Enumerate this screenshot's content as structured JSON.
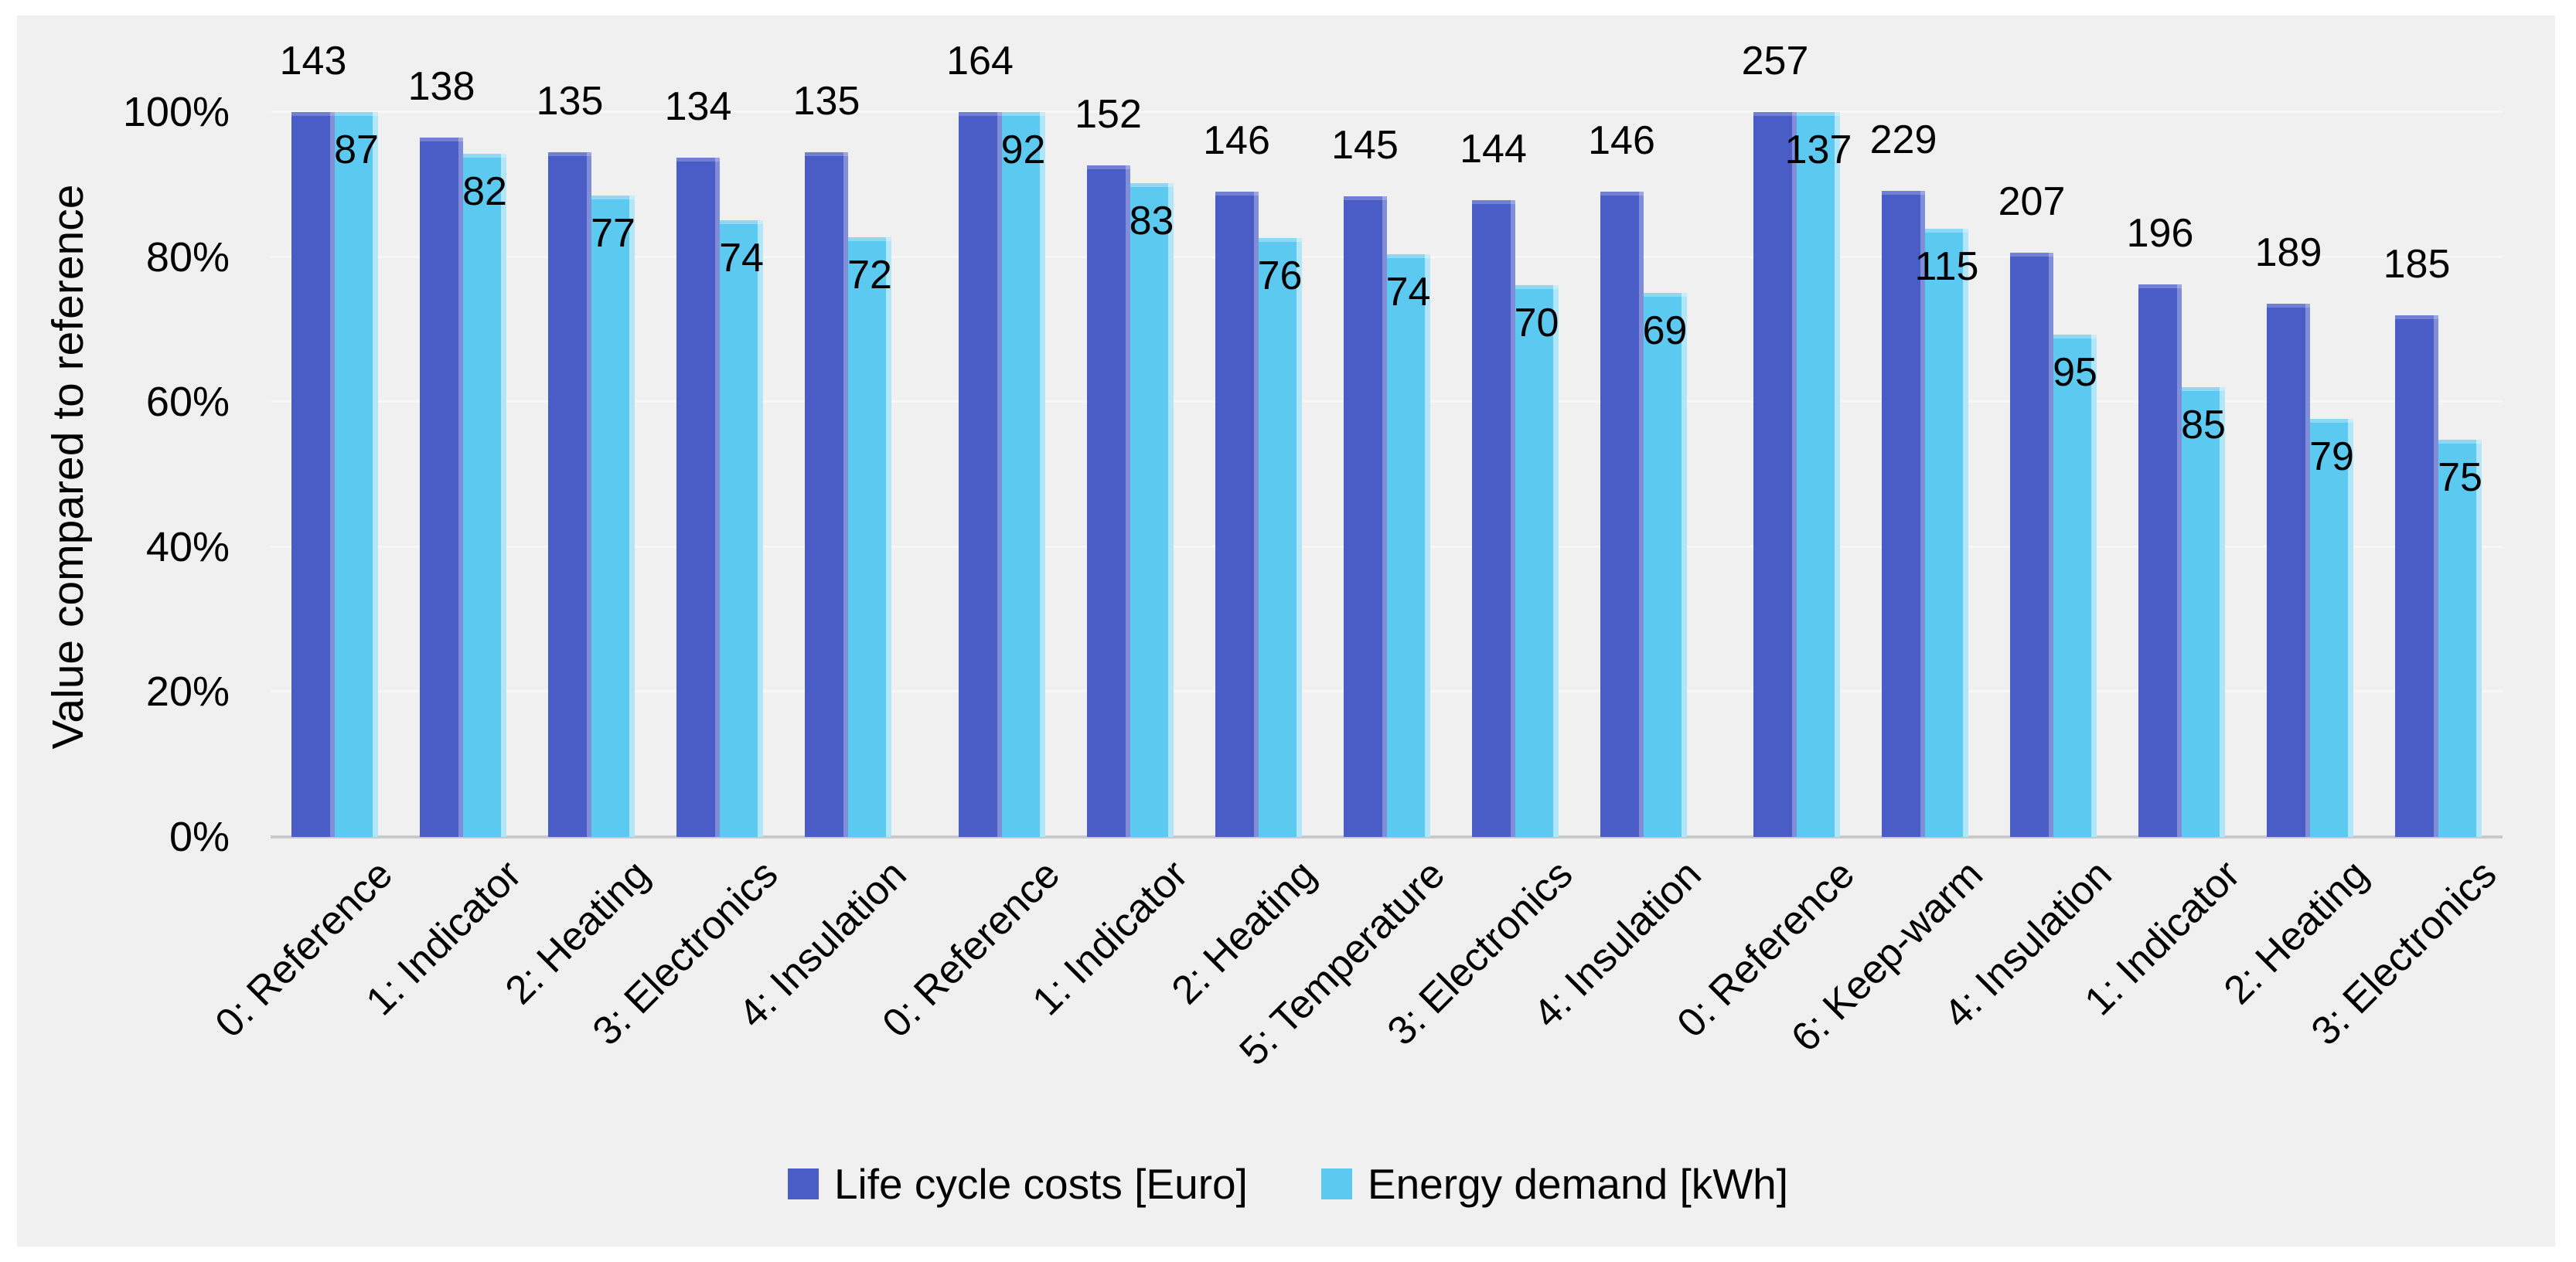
{
  "chart_data": {
    "type": "bar",
    "title": "",
    "ylabel": "Value compared to reference",
    "y_axis": {
      "tick_labels": [
        "100%",
        "80%",
        "60%",
        "40%",
        "20%",
        "0%"
      ],
      "tick_percents": [
        100,
        80,
        60,
        40,
        20,
        0
      ],
      "min": "0%",
      "max": "100%",
      "grid": "horizontal, faint"
    },
    "bar_unit": "percent of group reference value",
    "label_placement": {
      "life_cycle_costs": "outside end, above bar",
      "energy_demand": "inside end, top of bar"
    },
    "series": [
      {
        "name": "Life cycle costs [Euro]",
        "color": "#4a5cc6"
      },
      {
        "name": "Energy demand [kWh]",
        "color": "#5cc9f0"
      }
    ],
    "groups": [
      {
        "categories": [
          "0: Reference",
          "1: Indicator",
          "2: Heating",
          "3: Electronics",
          "4: Insulation"
        ],
        "life_cycle_costs": [
          143,
          138,
          135,
          134,
          135
        ],
        "energy_demand": [
          87,
          82,
          77,
          74,
          72
        ]
      },
      {
        "categories": [
          "0: Reference",
          "1: Indicator",
          "2: Heating",
          "5: Temperature",
          "3: Electronics",
          "4: Insulation"
        ],
        "life_cycle_costs": [
          164,
          152,
          146,
          145,
          144,
          146
        ],
        "energy_demand": [
          92,
          83,
          76,
          74,
          70,
          69
        ]
      },
      {
        "categories": [
          "0: Reference",
          "6: Keep-warm",
          "4: Insulation",
          "1: Indicator",
          "2: Heating",
          "3: Electronics"
        ],
        "life_cycle_costs": [
          257,
          229,
          207,
          196,
          189,
          185
        ],
        "energy_demand": [
          137,
          115,
          95,
          85,
          79,
          75
        ]
      }
    ],
    "legend_position": "bottom center"
  },
  "colors": {
    "panel_bg": "#f0f0f0",
    "page_bg": "#ffffff",
    "gridline": "#f7f7f7",
    "axis_line": "#c9c9c9",
    "text": "#000000",
    "lcc_bar": "#4a5cc6",
    "energy_bar": "#5cc9f0"
  }
}
